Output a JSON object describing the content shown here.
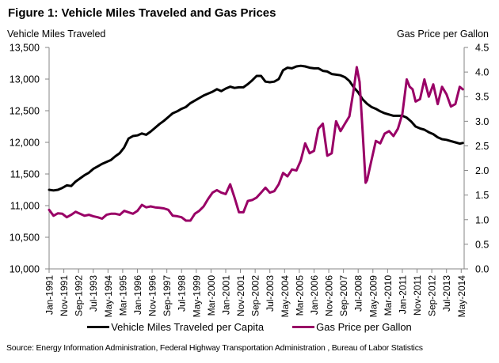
{
  "chart_data": {
    "type": "line",
    "title": "Figure 1: Vehicle Miles Traveled and Gas Prices",
    "ylabel_left": "Vehicle Miles Traveled",
    "ylabel_right": "Gas Price per Gallon",
    "ylim_left": [
      10000,
      13500
    ],
    "yticks_left": [
      "10,000",
      "10,500",
      "11,000",
      "11,500",
      "12,000",
      "12,500",
      "13,000",
      "13,500"
    ],
    "ytick_values_left": [
      10000,
      10500,
      11000,
      11500,
      12000,
      12500,
      13000,
      13500
    ],
    "ylim_right": [
      0,
      4.5
    ],
    "yticks_right": [
      "0.0",
      "0.5",
      "1.0",
      "1.5",
      "2.0",
      "2.5",
      "3.0",
      "3.5",
      "4.0",
      "4.5"
    ],
    "ytick_values_right": [
      0,
      0.5,
      1.0,
      1.5,
      2.0,
      2.5,
      3.0,
      3.5,
      4.0,
      4.5
    ],
    "x_range": [
      "Jan-1991",
      "Jun-2014"
    ],
    "xticks": [
      "Jan-1991",
      "Nov-1991",
      "Sep-1992",
      "Jul-1993",
      "May-1994",
      "Mar-1995",
      "Jan-1996",
      "Nov-1996",
      "Sep-1997",
      "Jul-1998",
      "May-1999",
      "Mar-2000",
      "Jan-2001",
      "Nov-2001",
      "Sep-2002",
      "Jul-2003",
      "May-2004",
      "Mar-2005",
      "Jan-2006",
      "Nov-2006",
      "Sep-2007",
      "Jul-2008",
      "May-2009",
      "Mar-2010",
      "Jan-2011",
      "Nov-2011",
      "Sep-2012",
      "Jul-2013",
      "May-2014"
    ],
    "grid": false,
    "legend_position": "bottom",
    "series": [
      {
        "name": "Vehicle Miles Traveled per Capita",
        "axis": "left",
        "color": "#000000",
        "x": [
          1991.0,
          1991.25,
          1991.5,
          1991.75,
          1992.0,
          1992.25,
          1992.5,
          1992.75,
          1993.0,
          1993.25,
          1993.5,
          1993.75,
          1994.0,
          1994.25,
          1994.5,
          1994.75,
          1995.0,
          1995.25,
          1995.5,
          1995.75,
          1996.0,
          1996.25,
          1996.5,
          1996.75,
          1997.0,
          1997.25,
          1997.5,
          1997.75,
          1998.0,
          1998.25,
          1998.5,
          1998.75,
          1999.0,
          1999.25,
          1999.5,
          1999.75,
          2000.0,
          2000.25,
          2000.5,
          2000.75,
          2001.0,
          2001.25,
          2001.5,
          2001.75,
          2002.0,
          2002.25,
          2002.5,
          2002.75,
          2003.0,
          2003.25,
          2003.5,
          2003.75,
          2004.0,
          2004.25,
          2004.5,
          2004.75,
          2005.0,
          2005.25,
          2005.5,
          2005.75,
          2006.0,
          2006.25,
          2006.5,
          2006.75,
          2007.0,
          2007.25,
          2007.5,
          2007.75,
          2008.0,
          2008.25,
          2008.5,
          2008.75,
          2009.0,
          2009.25,
          2009.5,
          2009.75,
          2010.0,
          2010.25,
          2010.5,
          2010.75,
          2011.0,
          2011.25,
          2011.5,
          2011.75,
          2012.0,
          2012.25,
          2012.5,
          2012.75,
          2013.0,
          2013.25,
          2013.5,
          2013.75,
          2014.0,
          2014.25,
          2014.42
        ],
        "values": [
          11250,
          11240,
          11250,
          11280,
          11320,
          11310,
          11380,
          11430,
          11480,
          11520,
          11580,
          11620,
          11660,
          11690,
          11720,
          11780,
          11830,
          11920,
          12060,
          12100,
          12110,
          12140,
          12120,
          12170,
          12230,
          12290,
          12340,
          12400,
          12460,
          12490,
          12530,
          12560,
          12620,
          12660,
          12700,
          12740,
          12770,
          12800,
          12840,
          12810,
          12850,
          12880,
          12860,
          12870,
          12870,
          12920,
          12980,
          13050,
          13050,
          12960,
          12950,
          12960,
          13000,
          13140,
          13180,
          13170,
          13200,
          13210,
          13200,
          13180,
          13170,
          13170,
          13130,
          13120,
          13080,
          13070,
          13060,
          13030,
          12970,
          12870,
          12790,
          12680,
          12610,
          12560,
          12530,
          12490,
          12460,
          12440,
          12420,
          12420,
          12420,
          12390,
          12330,
          12250,
          12220,
          12200,
          12160,
          12130,
          12080,
          12050,
          12040,
          12020,
          12000,
          11980,
          11990
        ]
      },
      {
        "name": "Gas Price per Gallon",
        "axis": "right",
        "color": "#990066",
        "x": [
          1991.0,
          1991.25,
          1991.5,
          1991.75,
          1992.0,
          1992.25,
          1992.5,
          1992.75,
          1993.0,
          1993.25,
          1993.5,
          1993.75,
          1994.0,
          1994.25,
          1994.5,
          1994.75,
          1995.0,
          1995.25,
          1995.5,
          1995.75,
          1996.0,
          1996.25,
          1996.5,
          1996.75,
          1997.0,
          1997.25,
          1997.5,
          1997.75,
          1998.0,
          1998.25,
          1998.5,
          1998.75,
          1999.0,
          1999.25,
          1999.5,
          1999.75,
          2000.0,
          2000.25,
          2000.5,
          2000.75,
          2001.0,
          2001.25,
          2001.5,
          2001.75,
          2002.0,
          2002.25,
          2002.5,
          2002.75,
          2003.0,
          2003.25,
          2003.5,
          2003.75,
          2004.0,
          2004.25,
          2004.5,
          2004.75,
          2005.0,
          2005.25,
          2005.5,
          2005.75,
          2006.0,
          2006.25,
          2006.5,
          2006.75,
          2007.0,
          2007.25,
          2007.5,
          2007.75,
          2008.0,
          2008.25,
          2008.42,
          2008.58,
          2008.75,
          2008.92,
          2009.0,
          2009.25,
          2009.5,
          2009.75,
          2010.0,
          2010.25,
          2010.5,
          2010.75,
          2011.0,
          2011.25,
          2011.42,
          2011.58,
          2011.75,
          2012.0,
          2012.25,
          2012.5,
          2012.75,
          2013.0,
          2013.25,
          2013.5,
          2013.75,
          2014.0,
          2014.25,
          2014.42
        ],
        "values": [
          1.2,
          1.08,
          1.13,
          1.12,
          1.05,
          1.1,
          1.16,
          1.12,
          1.08,
          1.1,
          1.07,
          1.05,
          1.02,
          1.1,
          1.12,
          1.12,
          1.1,
          1.18,
          1.15,
          1.12,
          1.18,
          1.3,
          1.25,
          1.27,
          1.25,
          1.24,
          1.23,
          1.2,
          1.08,
          1.07,
          1.05,
          0.98,
          0.98,
          1.12,
          1.18,
          1.27,
          1.42,
          1.55,
          1.6,
          1.55,
          1.52,
          1.72,
          1.45,
          1.15,
          1.15,
          1.38,
          1.4,
          1.45,
          1.55,
          1.65,
          1.55,
          1.58,
          1.72,
          1.95,
          1.88,
          2.02,
          2.0,
          2.2,
          2.55,
          2.35,
          2.4,
          2.85,
          2.95,
          2.3,
          2.35,
          3.0,
          2.8,
          2.95,
          3.1,
          3.65,
          4.1,
          3.8,
          2.8,
          1.75,
          1.8,
          2.2,
          2.6,
          2.55,
          2.75,
          2.8,
          2.7,
          2.85,
          3.15,
          3.85,
          3.7,
          3.65,
          3.4,
          3.45,
          3.85,
          3.5,
          3.75,
          3.35,
          3.7,
          3.55,
          3.3,
          3.35,
          3.7,
          3.65
        ]
      }
    ]
  },
  "legend": {
    "items": [
      {
        "label": "Vehicle Miles Traveled per Capita",
        "color": "#000000"
      },
      {
        "label": "Gas Price per Gallon",
        "color": "#990066"
      }
    ]
  },
  "source": "Source: Energy Information  Administration, Federal Highway Transportation Administration , Bureau of Labor Statistics"
}
